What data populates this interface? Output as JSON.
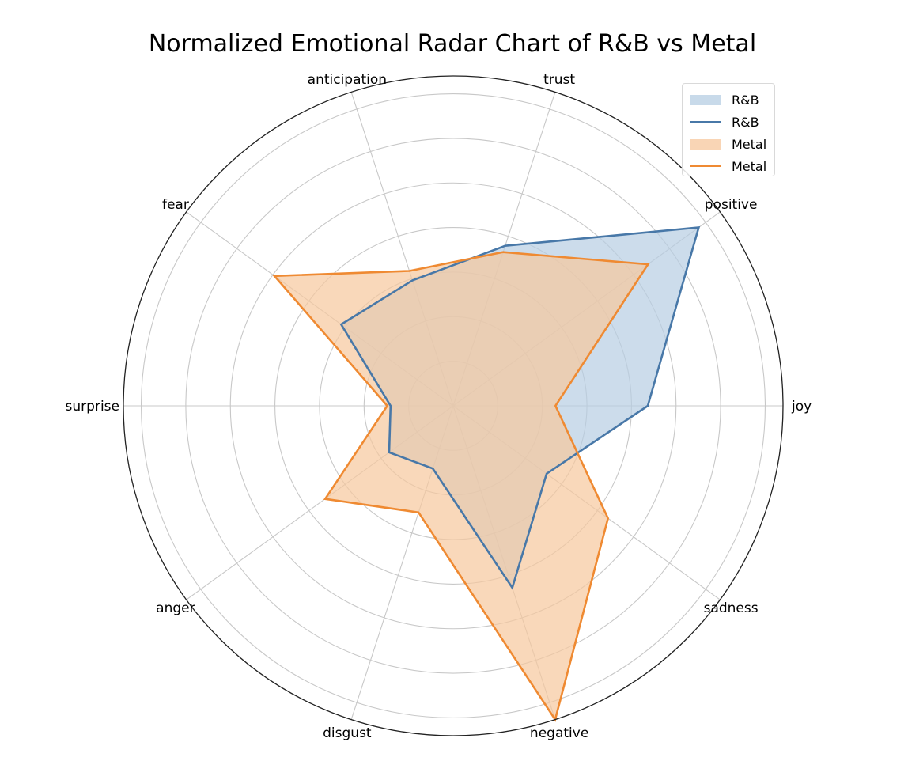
{
  "chart_data": {
    "type": "radar",
    "title": "Normalized Emotional Radar Chart of R&B vs Metal",
    "axes": [
      "joy",
      "positive",
      "trust",
      "anticipation",
      "fear",
      "surprise",
      "anger",
      "disgust",
      "negative",
      "sadness"
    ],
    "rlim": [
      0,
      1.0
    ],
    "grid": true,
    "legend_position": "top-right",
    "series": [
      {
        "name": "R&B",
        "color": "#4878a8",
        "fill_color": "#b6cde3",
        "values": [
          0.59,
          0.92,
          0.51,
          0.4,
          0.42,
          0.19,
          0.24,
          0.2,
          0.58,
          0.35
        ]
      },
      {
        "name": "Metal",
        "color": "#ef8a32",
        "fill_color": "#f7c79c",
        "values": [
          0.31,
          0.73,
          0.49,
          0.43,
          0.67,
          0.2,
          0.48,
          0.34,
          1.0,
          0.58
        ]
      }
    ]
  },
  "legend": {
    "entries": [
      {
        "label": "R&B",
        "kind": "fill"
      },
      {
        "label": "R&B",
        "kind": "line"
      },
      {
        "label": "Metal",
        "kind": "fill"
      },
      {
        "label": "Metal",
        "kind": "line"
      }
    ]
  }
}
